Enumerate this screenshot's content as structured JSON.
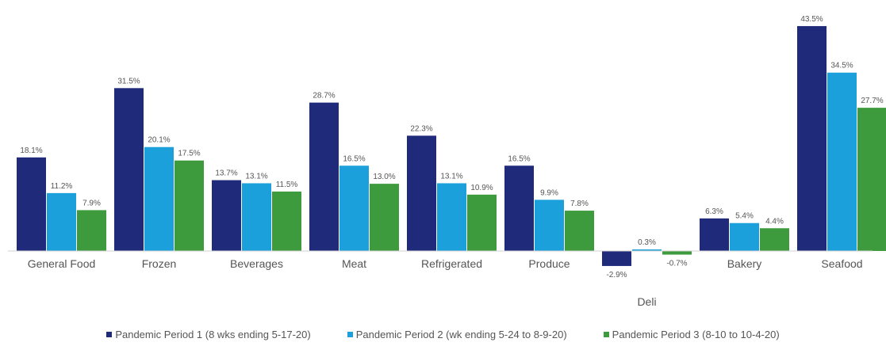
{
  "chart_data": {
    "type": "bar",
    "title": "",
    "xlabel": "",
    "ylabel": "",
    "categories": [
      "General Food",
      "Frozen",
      "Beverages",
      "Meat",
      "Refrigerated",
      "Produce",
      "Deli",
      "Bakery",
      "Seafood"
    ],
    "series": [
      {
        "name": "Pandemic Period 1 (8 wks ending 5-17-20)",
        "color": "#1f2a7a",
        "values": [
          18.1,
          31.5,
          13.7,
          28.7,
          22.3,
          16.5,
          -2.9,
          6.3,
          43.5
        ],
        "labels": [
          "18.1%",
          "31.5%",
          "13.7%",
          "28.7%",
          "22.3%",
          "16.5%",
          "-2.9%",
          "6.3%",
          "43.5%"
        ]
      },
      {
        "name": "Pandemic Period 2 (wk ending 5-24 to 8-9-20)",
        "color": "#1ca0dc",
        "values": [
          11.2,
          20.1,
          13.1,
          16.5,
          13.1,
          9.9,
          0.3,
          5.4,
          34.5
        ],
        "labels": [
          "11.2%",
          "20.1%",
          "13.1%",
          "16.5%",
          "13.1%",
          "9.9%",
          "0.3%",
          "5.4%",
          "34.5%"
        ]
      },
      {
        "name": "Pandemic Period 3 (8-10 to 10-4-20)",
        "color": "#3d9a3d",
        "values": [
          7.9,
          17.5,
          11.5,
          13.0,
          10.9,
          7.8,
          -0.7,
          4.4,
          27.7
        ],
        "labels": [
          "7.9%",
          "17.5%",
          "11.5%",
          "13.0%",
          "10.9%",
          "7.8%",
          "-0.7%",
          "4.4%",
          "27.7%"
        ]
      }
    ],
    "ylim": [
      -5,
      45
    ],
    "grid": false,
    "legend_position": "bottom"
  }
}
